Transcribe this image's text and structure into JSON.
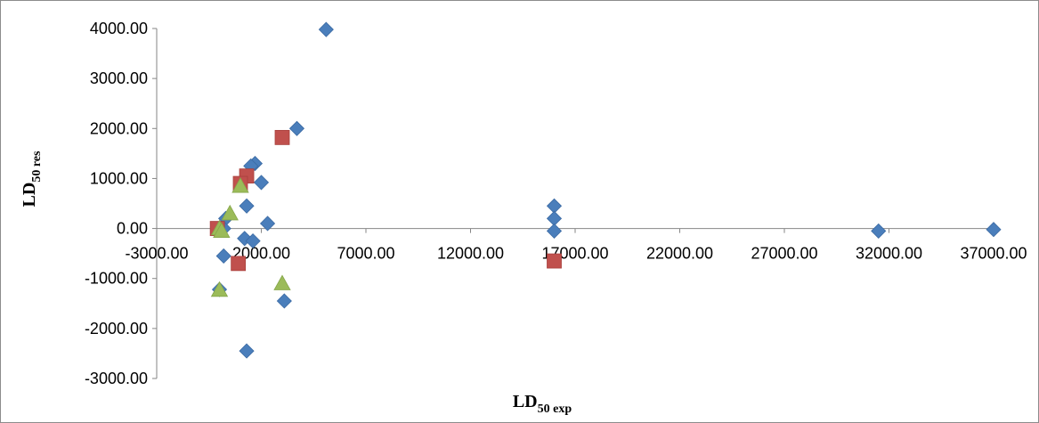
{
  "chart_data": {
    "type": "scatter",
    "xlabel": {
      "main": "LD",
      "sub": "50 exp"
    },
    "ylabel": {
      "main": "LD",
      "sub": "50 res"
    },
    "xlim": [
      -3000,
      37000
    ],
    "ylim": [
      -3000,
      4000
    ],
    "x_ticks": [
      -3000,
      2000,
      7000,
      12000,
      17000,
      22000,
      27000,
      32000,
      37000
    ],
    "y_ticks": [
      -3000,
      -2000,
      -1000,
      0,
      1000,
      2000,
      3000,
      4000
    ],
    "x_tick_labels": [
      "-3000.00",
      "2000.00",
      "7000.00",
      "12000.00",
      "17000.00",
      "22000.00",
      "27000.00",
      "32000.00",
      "37000.00"
    ],
    "y_tick_labels": [
      "-3000.00",
      "-2000.00",
      "-1000.00",
      "0.00",
      "1000.00",
      "2000.00",
      "3000.00",
      "4000.00"
    ],
    "grid": false,
    "legend": "none",
    "series": [
      {
        "marker": "diamond",
        "color": "#4a7ebb",
        "x": [
          5100,
          3700,
          1700,
          1500,
          2000,
          1300,
          300,
          2300,
          200,
          1200,
          1600,
          200,
          3100,
          1300,
          0,
          16000,
          16000,
          16000,
          31500,
          37000
        ],
        "y": [
          3980,
          2000,
          1300,
          1250,
          920,
          450,
          200,
          100,
          0,
          -200,
          -250,
          -550,
          -1450,
          -2450,
          -1220,
          450,
          200,
          -50,
          -50,
          -20
        ]
      },
      {
        "marker": "square",
        "color": "#c0504d",
        "x": [
          3000,
          1300,
          1000,
          900,
          -100,
          16000
        ],
        "y": [
          1820,
          1050,
          900,
          -700,
          0,
          -650
        ]
      },
      {
        "marker": "triangle",
        "color": "#9bbb59",
        "x": [
          1000,
          500,
          0,
          100,
          3000,
          0
        ],
        "y": [
          850,
          300,
          0,
          -50,
          -1100,
          -1230
        ]
      }
    ]
  }
}
